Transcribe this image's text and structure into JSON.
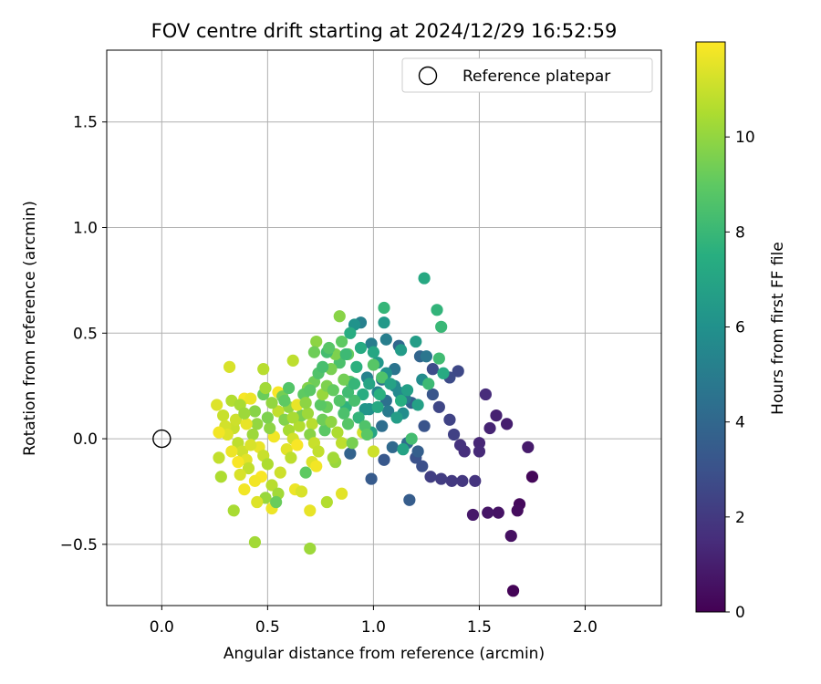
{
  "chart_data": {
    "type": "scatter",
    "title": "FOV centre drift starting at 2024/12/29 16:52:59",
    "xlabel": "Angular distance from reference (arcmin)",
    "ylabel": "Rotation from reference (arcmin)",
    "xlim": [
      -0.26,
      2.36
    ],
    "ylim": [
      -0.79,
      1.84
    ],
    "xticks": [
      0.0,
      0.5,
      1.0,
      1.5,
      2.0
    ],
    "xtick_labels": [
      "0.0",
      "0.5",
      "1.0",
      "1.5",
      "2.0"
    ],
    "yticks": [
      -0.5,
      0.0,
      0.5,
      1.0,
      1.5
    ],
    "ytick_labels": [
      "−0.5",
      "0.0",
      "0.5",
      "1.0",
      "1.5"
    ],
    "grid": true,
    "legend": {
      "placement": "top-right",
      "entries": [
        "Reference platepar"
      ]
    },
    "reference_point": {
      "x": 0.0,
      "y": 0.0,
      "label": "Reference platepar"
    },
    "colorbar": {
      "label": "Hours from first FF file",
      "colormap": "viridis",
      "range": [
        0,
        12
      ],
      "ticks": [
        0,
        2,
        4,
        6,
        8,
        10
      ],
      "tick_labels": [
        "0",
        "2",
        "4",
        "6",
        "8",
        "10"
      ]
    },
    "points": [
      {
        "x": 1.66,
        "y": -0.72,
        "h": 0.1
      },
      {
        "x": 1.75,
        "y": -0.18,
        "h": 0.2
      },
      {
        "x": 1.69,
        "y": -0.31,
        "h": 0.3
      },
      {
        "x": 1.68,
        "y": -0.34,
        "h": 0.4
      },
      {
        "x": 1.65,
        "y": -0.46,
        "h": 0.5
      },
      {
        "x": 1.59,
        "y": -0.35,
        "h": 0.6
      },
      {
        "x": 1.54,
        "y": -0.35,
        "h": 0.7
      },
      {
        "x": 1.47,
        "y": -0.36,
        "h": 0.8
      },
      {
        "x": 1.73,
        "y": -0.04,
        "h": 0.9
      },
      {
        "x": 1.63,
        "y": 0.07,
        "h": 1.0
      },
      {
        "x": 1.58,
        "y": 0.11,
        "h": 1.1
      },
      {
        "x": 1.55,
        "y": 0.05,
        "h": 1.2
      },
      {
        "x": 1.5,
        "y": -0.02,
        "h": 1.3
      },
      {
        "x": 1.5,
        "y": -0.06,
        "h": 1.4
      },
      {
        "x": 1.53,
        "y": 0.21,
        "h": 1.5
      },
      {
        "x": 1.43,
        "y": -0.06,
        "h": 1.6
      },
      {
        "x": 1.41,
        "y": -0.03,
        "h": 1.7
      },
      {
        "x": 1.48,
        "y": -0.2,
        "h": 1.8
      },
      {
        "x": 1.42,
        "y": -0.2,
        "h": 1.9
      },
      {
        "x": 1.37,
        "y": -0.2,
        "h": 2.0
      },
      {
        "x": 1.32,
        "y": -0.19,
        "h": 2.1
      },
      {
        "x": 1.27,
        "y": -0.18,
        "h": 2.2
      },
      {
        "x": 1.38,
        "y": 0.02,
        "h": 2.3
      },
      {
        "x": 1.36,
        "y": 0.09,
        "h": 2.4
      },
      {
        "x": 1.31,
        "y": 0.15,
        "h": 2.5
      },
      {
        "x": 1.4,
        "y": 0.32,
        "h": 2.6
      },
      {
        "x": 1.36,
        "y": 0.29,
        "h": 2.7
      },
      {
        "x": 1.28,
        "y": 0.33,
        "h": 2.8
      },
      {
        "x": 1.23,
        "y": -0.13,
        "h": 2.9
      },
      {
        "x": 1.2,
        "y": -0.09,
        "h": 3.0
      },
      {
        "x": 1.24,
        "y": 0.06,
        "h": 3.1
      },
      {
        "x": 1.28,
        "y": 0.21,
        "h": 3.2
      },
      {
        "x": 1.05,
        "y": -0.1,
        "h": 3.3
      },
      {
        "x": 0.99,
        "y": -0.19,
        "h": 3.4
      },
      {
        "x": 1.17,
        "y": -0.29,
        "h": 3.5
      },
      {
        "x": 1.21,
        "y": -0.06,
        "h": 3.6
      },
      {
        "x": 1.18,
        "y": 0.17,
        "h": 3.7
      },
      {
        "x": 0.89,
        "y": -0.07,
        "h": 3.8
      },
      {
        "x": 1.22,
        "y": 0.39,
        "h": 3.9
      },
      {
        "x": 1.12,
        "y": 0.44,
        "h": 4.0
      },
      {
        "x": 1.09,
        "y": -0.04,
        "h": 4.1
      },
      {
        "x": 1.16,
        "y": -0.02,
        "h": 4.2
      },
      {
        "x": 1.04,
        "y": 0.06,
        "h": 4.3
      },
      {
        "x": 1.06,
        "y": 0.18,
        "h": 4.4
      },
      {
        "x": 1.04,
        "y": 0.28,
        "h": 4.5
      },
      {
        "x": 1.1,
        "y": 0.33,
        "h": 4.6
      },
      {
        "x": 1.25,
        "y": 0.39,
        "h": 4.7
      },
      {
        "x": 1.15,
        "y": 0.19,
        "h": 4.8
      },
      {
        "x": 1.07,
        "y": 0.13,
        "h": 4.9
      },
      {
        "x": 0.99,
        "y": 0.45,
        "h": 5.0
      },
      {
        "x": 1.06,
        "y": 0.47,
        "h": 5.1
      },
      {
        "x": 0.94,
        "y": 0.55,
        "h": 5.2
      },
      {
        "x": 0.97,
        "y": 0.29,
        "h": 5.3
      },
      {
        "x": 1.02,
        "y": 0.22,
        "h": 5.4
      },
      {
        "x": 1.1,
        "y": 0.25,
        "h": 5.5
      },
      {
        "x": 1.12,
        "y": 0.22,
        "h": 5.6
      },
      {
        "x": 1.23,
        "y": 0.28,
        "h": 5.7
      },
      {
        "x": 1.14,
        "y": 0.12,
        "h": 5.8
      },
      {
        "x": 0.98,
        "y": 0.14,
        "h": 5.9
      },
      {
        "x": 1.06,
        "y": 0.31,
        "h": 6.0
      },
      {
        "x": 0.91,
        "y": 0.54,
        "h": 6.1
      },
      {
        "x": 0.96,
        "y": 0.14,
        "h": 6.2
      },
      {
        "x": 1.02,
        "y": 0.36,
        "h": 6.3
      },
      {
        "x": 1.05,
        "y": 0.55,
        "h": 6.4
      },
      {
        "x": 1.13,
        "y": 0.42,
        "h": 6.5
      },
      {
        "x": 1.2,
        "y": 0.46,
        "h": 6.6
      },
      {
        "x": 1.16,
        "y": 0.23,
        "h": 6.7
      },
      {
        "x": 1.21,
        "y": 0.16,
        "h": 6.8
      },
      {
        "x": 1.14,
        "y": -0.05,
        "h": 6.9
      },
      {
        "x": 0.99,
        "y": 0.03,
        "h": 7.0
      },
      {
        "x": 1.0,
        "y": 0.41,
        "h": 7.1
      },
      {
        "x": 1.24,
        "y": 0.76,
        "h": 7.2
      },
      {
        "x": 1.33,
        "y": 0.31,
        "h": 7.3
      },
      {
        "x": 0.95,
        "y": 0.21,
        "h": 7.4
      },
      {
        "x": 1.13,
        "y": 0.18,
        "h": 7.5
      },
      {
        "x": 1.03,
        "y": 0.21,
        "h": 7.6
      },
      {
        "x": 0.87,
        "y": 0.15,
        "h": 7.7
      },
      {
        "x": 1.3,
        "y": 0.61,
        "h": 7.8
      },
      {
        "x": 1.05,
        "y": 0.62,
        "h": 7.9
      },
      {
        "x": 1.32,
        "y": 0.53,
        "h": 8.0
      },
      {
        "x": 1.26,
        "y": 0.26,
        "h": 8.1
      },
      {
        "x": 1.31,
        "y": 0.38,
        "h": 8.2
      },
      {
        "x": 1.18,
        "y": 0.0,
        "h": 8.3
      },
      {
        "x": 0.91,
        "y": 0.18,
        "h": 8.4
      },
      {
        "x": 0.84,
        "y": 0.36,
        "h": 8.5
      },
      {
        "x": 1.04,
        "y": 0.29,
        "h": 8.6
      },
      {
        "x": 0.89,
        "y": 0.27,
        "h": 8.7
      },
      {
        "x": 1.0,
        "y": 0.35,
        "h": 8.8
      },
      {
        "x": 0.77,
        "y": 0.04,
        "h": 8.9
      },
      {
        "x": 0.68,
        "y": -0.16,
        "h": 9.0
      },
      {
        "x": 0.88,
        "y": 0.4,
        "h": 9.1
      },
      {
        "x": 0.78,
        "y": 0.15,
        "h": 9.2
      },
      {
        "x": 0.72,
        "y": 0.27,
        "h": 9.3
      },
      {
        "x": 0.86,
        "y": 0.28,
        "h": 9.4
      },
      {
        "x": 0.8,
        "y": 0.33,
        "h": 9.5
      },
      {
        "x": 0.82,
        "y": 0.4,
        "h": 9.6
      },
      {
        "x": 0.69,
        "y": 0.24,
        "h": 9.7
      },
      {
        "x": 0.84,
        "y": 0.58,
        "h": 9.8
      },
      {
        "x": 0.73,
        "y": 0.46,
        "h": 9.9
      },
      {
        "x": 0.6,
        "y": 0.15,
        "h": 10.0
      },
      {
        "x": 0.82,
        "y": -0.11,
        "h": 10.1
      },
      {
        "x": 0.7,
        "y": -0.52,
        "h": 10.2
      },
      {
        "x": 0.44,
        "y": -0.49,
        "h": 10.3
      },
      {
        "x": 0.34,
        "y": -0.34,
        "h": 10.4
      },
      {
        "x": 0.28,
        "y": -0.18,
        "h": 10.5
      },
      {
        "x": 0.78,
        "y": -0.3,
        "h": 10.6
      },
      {
        "x": 0.48,
        "y": 0.33,
        "h": 10.7
      },
      {
        "x": 0.62,
        "y": 0.37,
        "h": 10.8
      },
      {
        "x": 0.27,
        "y": -0.09,
        "h": 10.9
      },
      {
        "x": 0.34,
        "y": 0.05,
        "h": 11.0
      },
      {
        "x": 1.0,
        "y": -0.06,
        "h": 11.1
      },
      {
        "x": 0.95,
        "y": 0.03,
        "h": 11.2
      },
      {
        "x": 0.32,
        "y": 0.34,
        "h": 11.3
      },
      {
        "x": 0.26,
        "y": 0.16,
        "h": 11.4
      },
      {
        "x": 0.85,
        "y": -0.26,
        "h": 11.5
      },
      {
        "x": 0.7,
        "y": -0.34,
        "h": 11.6
      },
      {
        "x": 0.52,
        "y": -0.33,
        "h": 11.7
      },
      {
        "x": 0.39,
        "y": -0.24,
        "h": 11.8
      },
      {
        "x": 0.39,
        "y": 0.19,
        "h": 11.9
      },
      {
        "x": 0.55,
        "y": 0.22,
        "h": 11.9
      },
      {
        "x": 0.33,
        "y": 0.18,
        "h": 10.6
      },
      {
        "x": 0.37,
        "y": 0.16,
        "h": 10.4
      },
      {
        "x": 0.29,
        "y": 0.11,
        "h": 11.0
      },
      {
        "x": 0.3,
        "y": 0.06,
        "h": 11.2
      },
      {
        "x": 0.31,
        "y": 0.02,
        "h": 11.4
      },
      {
        "x": 0.27,
        "y": 0.03,
        "h": 11.8
      },
      {
        "x": 0.36,
        "y": -0.02,
        "h": 10.8
      },
      {
        "x": 0.38,
        "y": -0.06,
        "h": 11.1
      },
      {
        "x": 0.4,
        "y": -0.1,
        "h": 11.5
      },
      {
        "x": 0.41,
        "y": -0.14,
        "h": 10.9
      },
      {
        "x": 0.37,
        "y": -0.17,
        "h": 11.3
      },
      {
        "x": 0.43,
        "y": 0.02,
        "h": 10.2
      },
      {
        "x": 0.45,
        "y": 0.07,
        "h": 10.0
      },
      {
        "x": 0.44,
        "y": 0.13,
        "h": 9.8
      },
      {
        "x": 0.42,
        "y": 0.19,
        "h": 11.7
      },
      {
        "x": 0.46,
        "y": -0.04,
        "h": 11.6
      },
      {
        "x": 0.48,
        "y": -0.08,
        "h": 11.0
      },
      {
        "x": 0.5,
        "y": -0.12,
        "h": 10.5
      },
      {
        "x": 0.47,
        "y": -0.18,
        "h": 11.9
      },
      {
        "x": 0.52,
        "y": -0.22,
        "h": 10.7
      },
      {
        "x": 0.55,
        "y": -0.26,
        "h": 10.3
      },
      {
        "x": 0.49,
        "y": -0.28,
        "h": 10.1
      },
      {
        "x": 0.45,
        "y": -0.3,
        "h": 11.4
      },
      {
        "x": 0.53,
        "y": 0.01,
        "h": 11.8
      },
      {
        "x": 0.51,
        "y": 0.05,
        "h": 9.9
      },
      {
        "x": 0.5,
        "y": 0.1,
        "h": 9.6
      },
      {
        "x": 0.55,
        "y": 0.13,
        "h": 10.9
      },
      {
        "x": 0.52,
        "y": 0.17,
        "h": 10.0
      },
      {
        "x": 0.57,
        "y": 0.2,
        "h": 9.4
      },
      {
        "x": 0.48,
        "y": 0.21,
        "h": 9.2
      },
      {
        "x": 0.49,
        "y": 0.24,
        "h": 10.3
      },
      {
        "x": 0.58,
        "y": 0.09,
        "h": 9.7
      },
      {
        "x": 0.6,
        "y": 0.04,
        "h": 10.4
      },
      {
        "x": 0.62,
        "y": 0.0,
        "h": 11.2
      },
      {
        "x": 0.59,
        "y": -0.05,
        "h": 11.5
      },
      {
        "x": 0.61,
        "y": -0.09,
        "h": 10.8
      },
      {
        "x": 0.56,
        "y": -0.16,
        "h": 11.1
      },
      {
        "x": 0.63,
        "y": -0.24,
        "h": 11.7
      },
      {
        "x": 0.66,
        "y": -0.25,
        "h": 11.3
      },
      {
        "x": 0.64,
        "y": -0.03,
        "h": 11.9
      },
      {
        "x": 0.65,
        "y": 0.06,
        "h": 10.6
      },
      {
        "x": 0.66,
        "y": 0.11,
        "h": 9.5
      },
      {
        "x": 0.64,
        "y": 0.16,
        "h": 11.6
      },
      {
        "x": 0.67,
        "y": 0.21,
        "h": 9.0
      },
      {
        "x": 0.69,
        "y": 0.12,
        "h": 10.2
      },
      {
        "x": 0.71,
        "y": 0.07,
        "h": 10.7
      },
      {
        "x": 0.7,
        "y": 0.02,
        "h": 9.8
      },
      {
        "x": 0.72,
        "y": -0.02,
        "h": 11.0
      },
      {
        "x": 0.74,
        "y": -0.06,
        "h": 10.9
      },
      {
        "x": 0.71,
        "y": -0.11,
        "h": 11.4
      },
      {
        "x": 0.73,
        "y": -0.13,
        "h": 11.8
      },
      {
        "x": 0.76,
        "y": 0.09,
        "h": 9.3
      },
      {
        "x": 0.75,
        "y": 0.16,
        "h": 8.9
      },
      {
        "x": 0.76,
        "y": 0.21,
        "h": 10.1
      },
      {
        "x": 0.78,
        "y": 0.25,
        "h": 9.6
      },
      {
        "x": 0.74,
        "y": 0.31,
        "h": 8.6
      },
      {
        "x": 0.76,
        "y": 0.34,
        "h": 8.4
      },
      {
        "x": 0.78,
        "y": 0.41,
        "h": 8.3
      },
      {
        "x": 0.81,
        "y": 0.23,
        "h": 9.1
      },
      {
        "x": 0.8,
        "y": 0.08,
        "h": 9.9
      },
      {
        "x": 0.83,
        "y": 0.03,
        "h": 10.5
      },
      {
        "x": 0.85,
        "y": -0.02,
        "h": 10.8
      },
      {
        "x": 0.81,
        "y": -0.09,
        "h": 10.3
      },
      {
        "x": 0.84,
        "y": 0.18,
        "h": 8.7
      },
      {
        "x": 0.86,
        "y": 0.12,
        "h": 8.5
      },
      {
        "x": 0.88,
        "y": 0.07,
        "h": 8.8
      },
      {
        "x": 0.88,
        "y": 0.22,
        "h": 8.2
      },
      {
        "x": 0.91,
        "y": 0.26,
        "h": 7.9
      },
      {
        "x": 0.92,
        "y": 0.34,
        "h": 7.6
      },
      {
        "x": 0.94,
        "y": 0.43,
        "h": 7.3
      },
      {
        "x": 0.93,
        "y": 0.1,
        "h": 7.8
      },
      {
        "x": 0.96,
        "y": 0.06,
        "h": 8.6
      },
      {
        "x": 0.9,
        "y": -0.02,
        "h": 9.5
      },
      {
        "x": 0.97,
        "y": 0.02,
        "h": 8.9
      },
      {
        "x": 0.35,
        "y": 0.09,
        "h": 11.1
      },
      {
        "x": 0.33,
        "y": -0.06,
        "h": 11.7
      },
      {
        "x": 0.36,
        "y": -0.11,
        "h": 11.9
      },
      {
        "x": 0.4,
        "y": 0.07,
        "h": 11.6
      },
      {
        "x": 0.39,
        "y": 0.12,
        "h": 10.2
      },
      {
        "x": 0.42,
        "y": -0.03,
        "h": 11.3
      },
      {
        "x": 0.44,
        "y": -0.2,
        "h": 11.8
      },
      {
        "x": 0.54,
        "y": -0.3,
        "h": 9.2
      },
      {
        "x": 0.58,
        "y": 0.18,
        "h": 9.0
      },
      {
        "x": 0.6,
        "y": 0.24,
        "h": 8.7
      },
      {
        "x": 0.62,
        "y": 0.1,
        "h": 10.4
      },
      {
        "x": 0.68,
        "y": 0.17,
        "h": 9.9
      },
      {
        "x": 0.7,
        "y": 0.23,
        "h": 8.9
      },
      {
        "x": 0.72,
        "y": 0.41,
        "h": 9.3
      },
      {
        "x": 0.79,
        "y": 0.43,
        "h": 8.8
      },
      {
        "x": 0.85,
        "y": 0.46,
        "h": 9.0
      },
      {
        "x": 0.87,
        "y": 0.4,
        "h": 8.1
      },
      {
        "x": 0.89,
        "y": 0.5,
        "h": 7.4
      },
      {
        "x": 1.08,
        "y": 0.26,
        "h": 6.9
      },
      {
        "x": 1.11,
        "y": 0.1,
        "h": 6.6
      },
      {
        "x": 1.02,
        "y": 0.15,
        "h": 7.2
      },
      {
        "x": 0.98,
        "y": 0.26,
        "h": 7.0
      }
    ]
  }
}
